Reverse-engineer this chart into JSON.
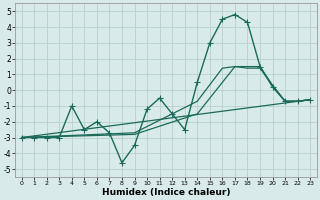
{
  "xlabel": "Humidex (Indice chaleur)",
  "xlim": [
    -0.5,
    23.5
  ],
  "ylim": [
    -5.5,
    5.5
  ],
  "yticks": [
    -5,
    -4,
    -3,
    -2,
    -1,
    0,
    1,
    2,
    3,
    4,
    5
  ],
  "xticks": [
    0,
    1,
    2,
    3,
    4,
    5,
    6,
    7,
    8,
    9,
    10,
    11,
    12,
    13,
    14,
    15,
    16,
    17,
    18,
    19,
    20,
    21,
    22,
    23
  ],
  "bg_color": "#d9eaea",
  "grid_color": "#b8d0d0",
  "line_color": "#1a6b5a",
  "series": [
    {
      "x": [
        0,
        1,
        2,
        3,
        4,
        5,
        6,
        7,
        8,
        9,
        10,
        11,
        12,
        13,
        14,
        15,
        16,
        17,
        18,
        19,
        20,
        21,
        22,
        23
      ],
      "y": [
        -3,
        -3,
        -3,
        -3,
        -1,
        -2.5,
        -2,
        -2.7,
        -4.6,
        -3.5,
        -1.2,
        -0.5,
        -1.5,
        -2.5,
        0.5,
        3.0,
        4.5,
        4.8,
        4.3,
        1.5,
        0.2,
        -0.7,
        -0.7,
        -0.6
      ],
      "lw": 1.0,
      "marker": "+",
      "ms": 4
    },
    {
      "x": [
        0,
        23
      ],
      "y": [
        -3,
        -0.6
      ],
      "lw": 0.9,
      "marker": null,
      "ms": 0
    },
    {
      "x": [
        0,
        9,
        14,
        17,
        19,
        20,
        21,
        22,
        23
      ],
      "y": [
        -3,
        -2.8,
        -1.5,
        1.5,
        1.5,
        0.3,
        -0.7,
        -0.7,
        -0.6
      ],
      "lw": 0.9,
      "marker": null,
      "ms": 0
    },
    {
      "x": [
        0,
        9,
        14,
        16,
        17,
        18,
        19,
        20,
        21,
        22,
        23
      ],
      "y": [
        -3,
        -2.7,
        -0.7,
        1.4,
        1.5,
        1.4,
        1.4,
        0.3,
        -0.7,
        -0.7,
        -0.6
      ],
      "lw": 0.9,
      "marker": null,
      "ms": 0
    }
  ]
}
